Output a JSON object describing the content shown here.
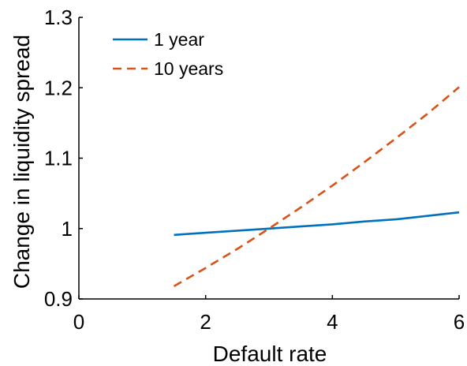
{
  "chart_data": {
    "type": "line",
    "title": "",
    "xlabel": "Default rate",
    "ylabel": "Change in liquidity spread",
    "xlim": [
      0,
      6
    ],
    "ylim": [
      0.9,
      1.3
    ],
    "xticks": [
      0,
      2,
      4,
      6
    ],
    "xtick_labels": [
      "0",
      "2",
      "4",
      "6"
    ],
    "yticks": [
      0.9,
      1.0,
      1.1,
      1.2,
      1.3
    ],
    "ytick_labels": [
      "0.9",
      "1",
      "1.1",
      "1.2",
      "1.3"
    ],
    "grid": false,
    "legend_position": "top-left",
    "series": [
      {
        "name": "1 year",
        "color": "#0072BD",
        "style": "solid",
        "x": [
          1.5,
          2.0,
          2.5,
          3.0,
          3.5,
          4.0,
          4.5,
          5.0,
          5.5,
          6.0
        ],
        "y": [
          0.991,
          0.994,
          0.997,
          1.0,
          1.003,
          1.006,
          1.01,
          1.013,
          1.018,
          1.023
        ]
      },
      {
        "name": "10 years",
        "color": "#D95319",
        "style": "dashed",
        "x": [
          1.5,
          2.0,
          2.5,
          3.0,
          3.5,
          4.0,
          4.5,
          5.0,
          5.5,
          6.0
        ],
        "y": [
          0.918,
          0.944,
          0.971,
          1.0,
          1.03,
          1.061,
          1.094,
          1.128,
          1.163,
          1.201
        ]
      }
    ]
  }
}
